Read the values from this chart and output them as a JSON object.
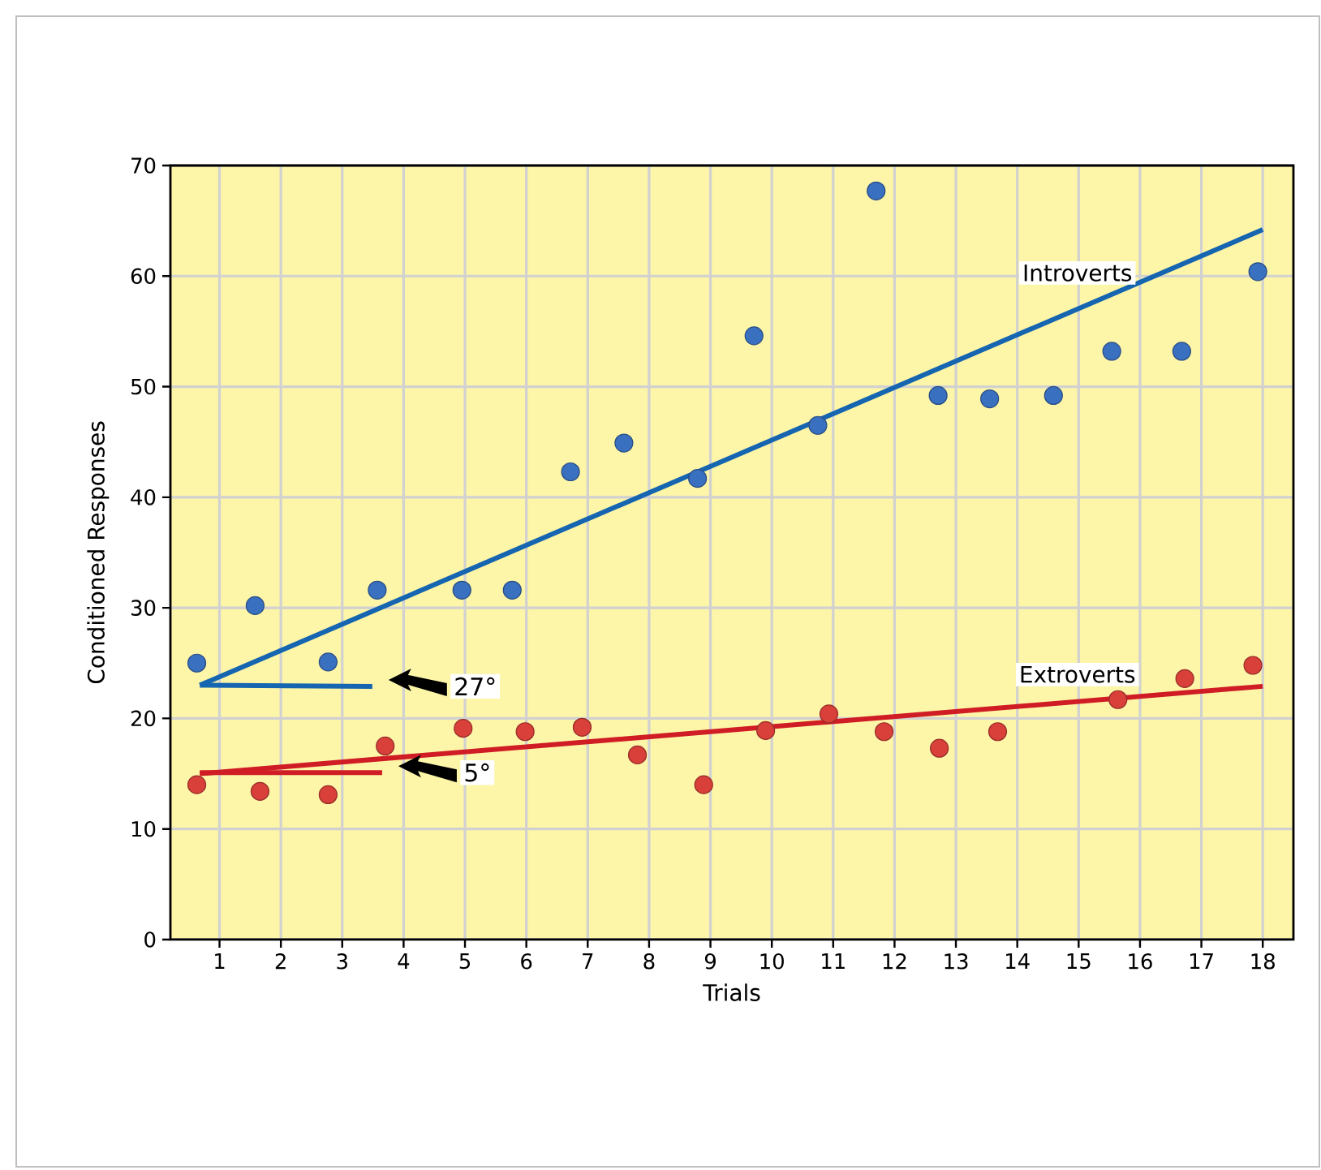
{
  "chart_data": {
    "type": "scatter",
    "xlabel": "Trials",
    "ylabel": "Conditioned Responses",
    "xlim": [
      0.2,
      18.5
    ],
    "ylim": [
      0,
      70
    ],
    "xticks": [
      1,
      2,
      3,
      4,
      5,
      6,
      7,
      8,
      9,
      10,
      11,
      12,
      13,
      14,
      15,
      16,
      17,
      18
    ],
    "yticks": [
      0,
      10,
      20,
      30,
      40,
      50,
      60,
      70
    ],
    "grid": true,
    "series": [
      {
        "marker": "circle",
        "color": "#3a70c0",
        "x": [
          0.63,
          1.58,
          2.77,
          3.57,
          4.95,
          5.77,
          6.72,
          7.59,
          8.79,
          9.71,
          10.75,
          11.7,
          12.71,
          13.55,
          14.59,
          15.54,
          16.68,
          17.92
        ],
        "values": [
          25.0,
          30.2,
          25.1,
          31.6,
          31.6,
          31.6,
          42.3,
          44.9,
          41.7,
          54.6,
          46.5,
          67.7,
          49.2,
          48.9,
          49.2,
          53.2,
          53.2,
          60.4
        ]
      },
      {
        "marker": "circle",
        "color": "#d9403a",
        "x": [
          0.63,
          1.66,
          2.77,
          3.7,
          4.97,
          5.98,
          6.91,
          7.81,
          8.89,
          9.9,
          10.93,
          11.83,
          12.73,
          13.68,
          15.64,
          16.73,
          17.84
        ],
        "values": [
          14.0,
          13.4,
          13.1,
          17.5,
          19.1,
          18.8,
          19.2,
          16.7,
          14.0,
          18.9,
          20.4,
          18.8,
          17.3,
          18.8,
          21.7,
          23.6,
          24.8
        ]
      },
      {
        "type": "line",
        "name": "Introverts",
        "color": "#1565b0",
        "x": [
          0.68,
          18.0
        ],
        "values": [
          23.0,
          64.2
        ]
      },
      {
        "type": "line",
        "name": "Extroverts",
        "color": "#d01c24",
        "x": [
          0.68,
          18.0
        ],
        "values": [
          15.0,
          22.9
        ]
      },
      {
        "type": "line",
        "color": "#1565b0",
        "x": [
          0.68,
          3.49
        ],
        "values": [
          23.0,
          22.9
        ]
      },
      {
        "type": "line",
        "color": "#d01c24",
        "x": [
          0.68,
          3.65
        ],
        "values": [
          15.1,
          15.1
        ]
      }
    ],
    "annotations": [
      "27°",
      "5°"
    ]
  }
}
